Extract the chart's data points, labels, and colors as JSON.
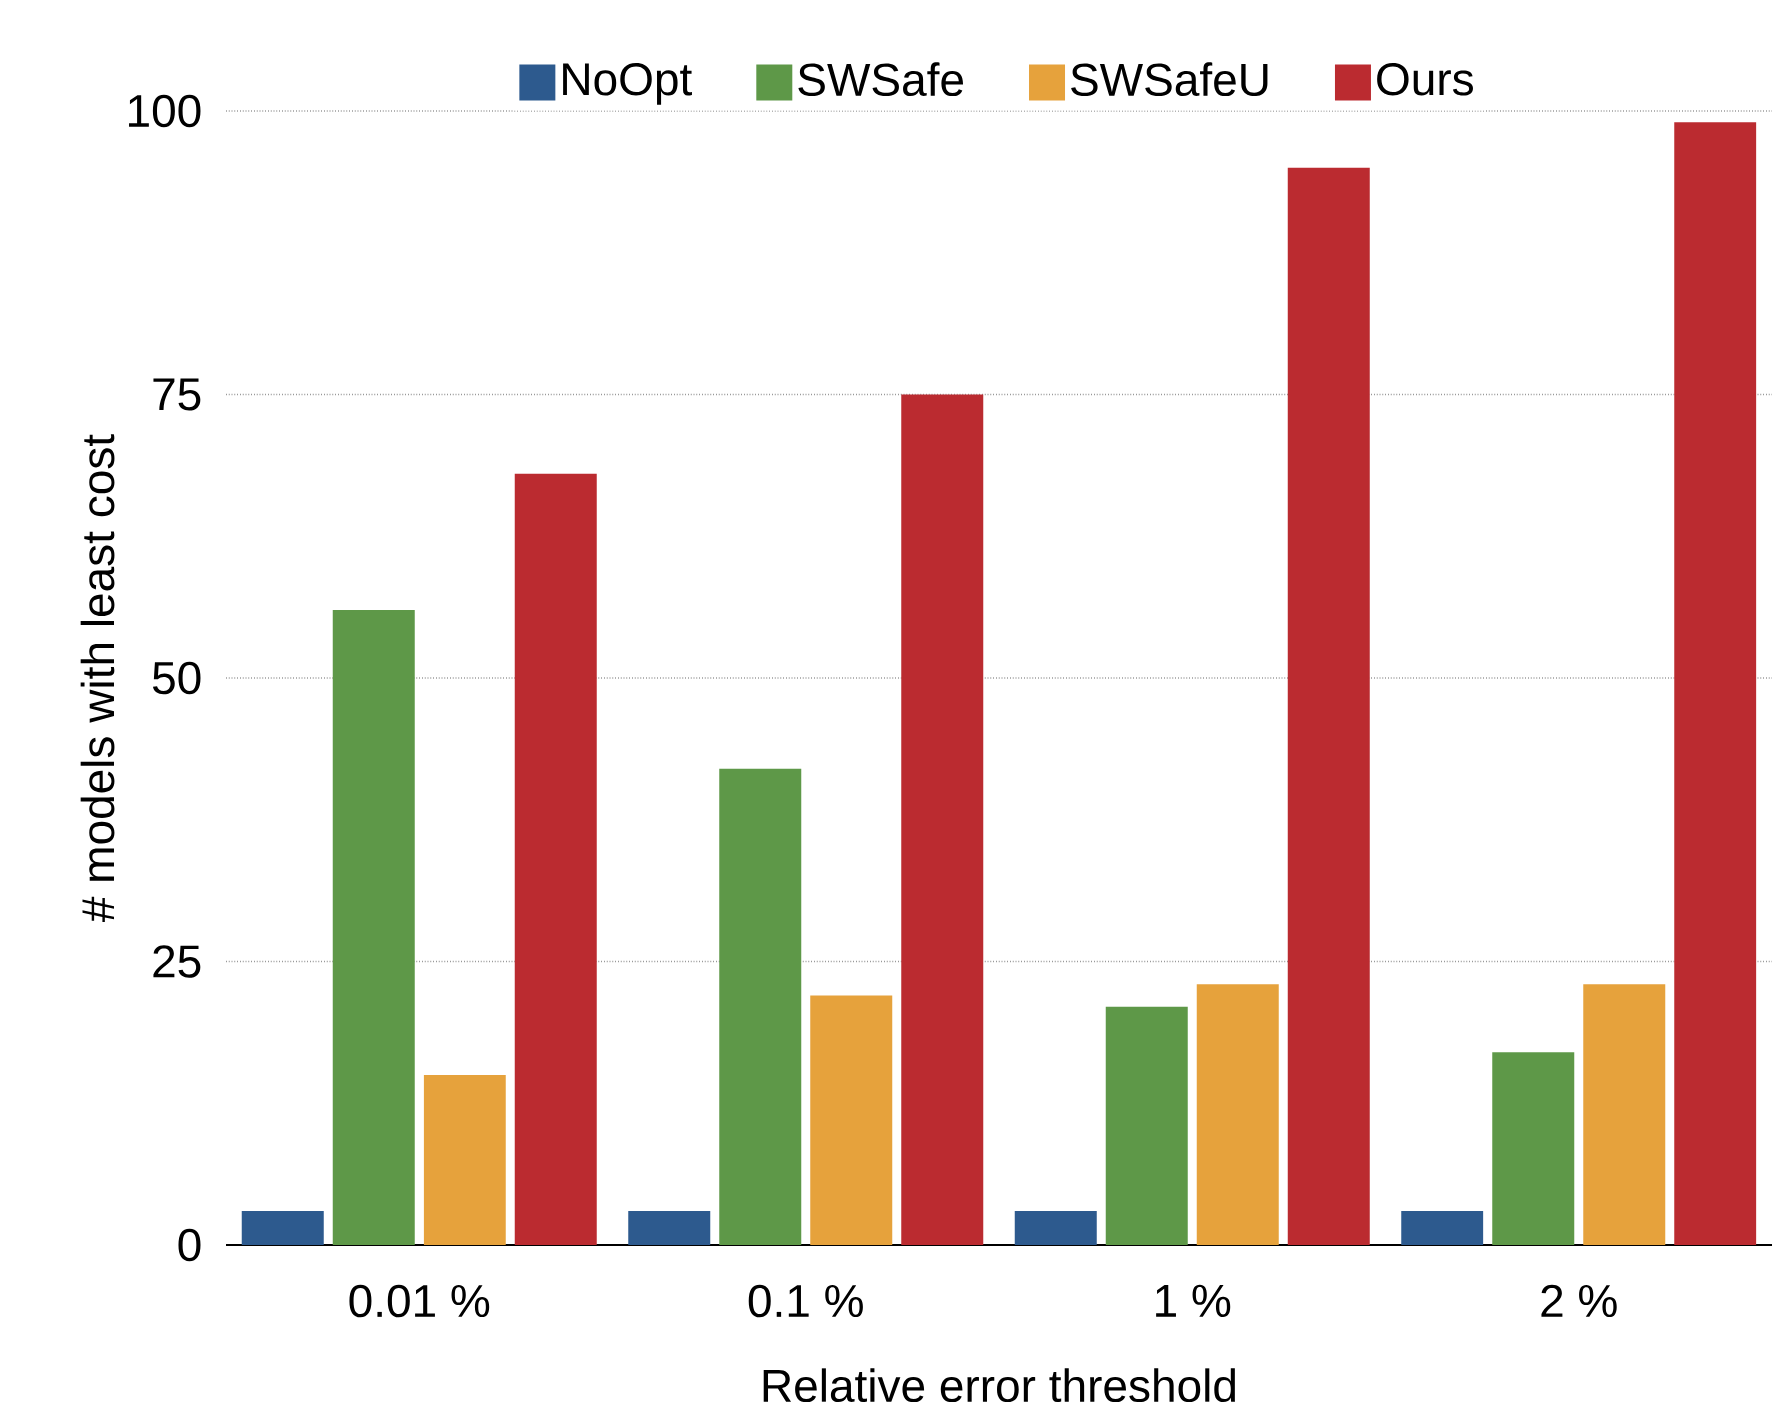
{
  "chart_data": {
    "type": "bar",
    "xlabel": "Relative error threshold",
    "ylabel": "# models with least cost",
    "categories": [
      "0.01 %",
      "0.1 %",
      "1 %",
      "2 %"
    ],
    "series": [
      {
        "name": "NoOpt",
        "color": "#2d5a8e",
        "values": [
          3,
          3,
          3,
          3
        ]
      },
      {
        "name": "SWSafe",
        "color": "#5e9848",
        "values": [
          56,
          42,
          21,
          17
        ]
      },
      {
        "name": "SWSafeU",
        "color": "#e6a23c",
        "values": [
          15,
          22,
          23,
          23
        ]
      },
      {
        "name": "Ours",
        "color": "#bb2b30",
        "values": [
          68,
          75,
          95,
          99
        ]
      }
    ],
    "ylim": [
      0,
      100
    ],
    "yticks": [
      0,
      25,
      50,
      75,
      100
    ],
    "grid": "y",
    "legend": "top"
  }
}
